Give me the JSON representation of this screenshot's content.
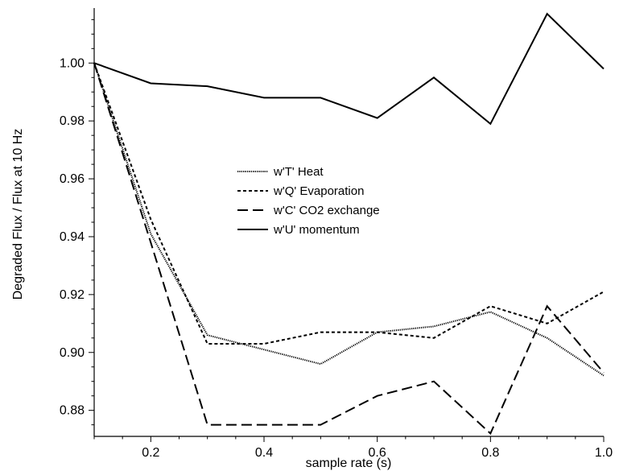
{
  "chart_data": {
    "type": "line",
    "xlabel": "sample rate (s)",
    "ylabel": "Degraded Flux / Flux at 10 Hz",
    "xlim": [
      0.1,
      1.0
    ],
    "ylim": [
      0.871,
      1.019
    ],
    "x_ticks": [
      0.2,
      0.4,
      0.6,
      0.8,
      1.0
    ],
    "x_tick_labels": [
      "0.2",
      "0.4",
      "0.6",
      "0.8",
      "1.0"
    ],
    "y_ticks": [
      0.88,
      0.9,
      0.92,
      0.94,
      0.96,
      0.98,
      1.0
    ],
    "y_tick_labels": [
      "0.88",
      "0.90",
      "0.92",
      "0.94",
      "0.96",
      "0.98",
      "1.00"
    ],
    "grid": false,
    "legend_position": "center",
    "x": [
      0.1,
      0.2,
      0.3,
      0.4,
      0.5,
      0.6,
      0.7,
      0.8,
      0.9,
      1.0
    ],
    "series": [
      {
        "name": "w'T' Heat",
        "style": "dotted",
        "values": [
          1.0,
          0.941,
          0.906,
          0.901,
          0.896,
          0.907,
          0.909,
          0.914,
          0.905,
          0.892
        ]
      },
      {
        "name": "w'Q' Evaporation",
        "style": "dashed-short",
        "values": [
          1.0,
          0.946,
          0.903,
          0.903,
          0.907,
          0.907,
          0.905,
          0.916,
          0.91,
          0.921
        ]
      },
      {
        "name": "w'C' CO2 exchange",
        "style": "dashed-long",
        "values": [
          1.0,
          0.938,
          0.875,
          0.875,
          0.875,
          0.885,
          0.89,
          0.872,
          0.916,
          0.893
        ]
      },
      {
        "name": "w'U' momentum",
        "style": "solid",
        "values": [
          1.0,
          0.993,
          0.992,
          0.988,
          0.988,
          0.981,
          0.995,
          0.979,
          1.017,
          0.998
        ]
      }
    ]
  }
}
